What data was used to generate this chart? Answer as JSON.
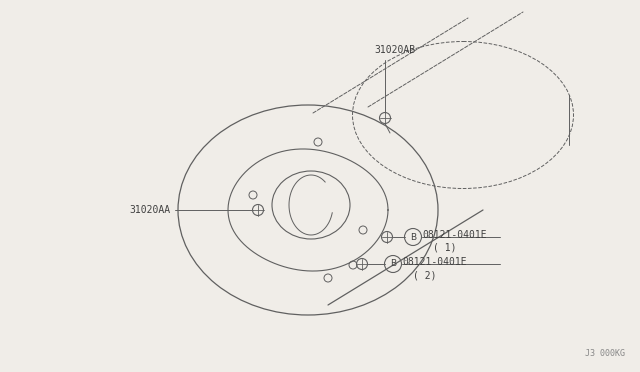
{
  "background_color": "#f0ede8",
  "line_color": "#606060",
  "text_color": "#404040",
  "watermark": "J3 000KG",
  "fig_w": 6.4,
  "fig_h": 3.72,
  "dpi": 100,
  "label_31020AB": "31020AB",
  "label_31020AA": "31020AA",
  "label_bolt1": "08121-0401E",
  "label_bolt1_sub": "( 1)",
  "label_bolt2": "08121-0401E",
  "label_bolt2_sub": "( 2)"
}
